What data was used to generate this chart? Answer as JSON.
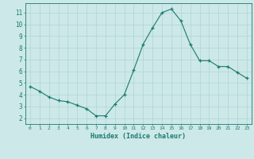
{
  "x": [
    0,
    1,
    2,
    3,
    4,
    5,
    6,
    7,
    8,
    9,
    10,
    11,
    12,
    13,
    14,
    15,
    16,
    17,
    18,
    19,
    20,
    21,
    22,
    23
  ],
  "y": [
    4.7,
    4.3,
    3.8,
    3.5,
    3.4,
    3.1,
    2.8,
    2.2,
    2.2,
    3.2,
    4.0,
    6.1,
    8.3,
    9.7,
    11.0,
    11.3,
    10.3,
    8.3,
    6.9,
    6.9,
    6.4,
    6.4,
    5.9,
    5.4
  ],
  "xlabel": "Humidex (Indice chaleur)",
  "ylim": [
    1.5,
    11.8
  ],
  "xlim": [
    -0.5,
    23.5
  ],
  "yticks": [
    2,
    3,
    4,
    5,
    6,
    7,
    8,
    9,
    10,
    11
  ],
  "xtick_labels": [
    "0",
    "1",
    "2",
    "3",
    "4",
    "5",
    "6",
    "7",
    "8",
    "9",
    "10",
    "11",
    "12",
    "13",
    "14",
    "15",
    "16",
    "17",
    "18",
    "19",
    "20",
    "21",
    "22",
    "23"
  ],
  "line_color": "#1a7a6e",
  "marker_color": "#1a7a6e",
  "bg_color": "#cce8e8",
  "grid_color": "#b0d4d4",
  "xlabel_color": "#1a7a6e",
  "tick_color": "#1a7a6e",
  "axis_color": "#1a7a6e"
}
